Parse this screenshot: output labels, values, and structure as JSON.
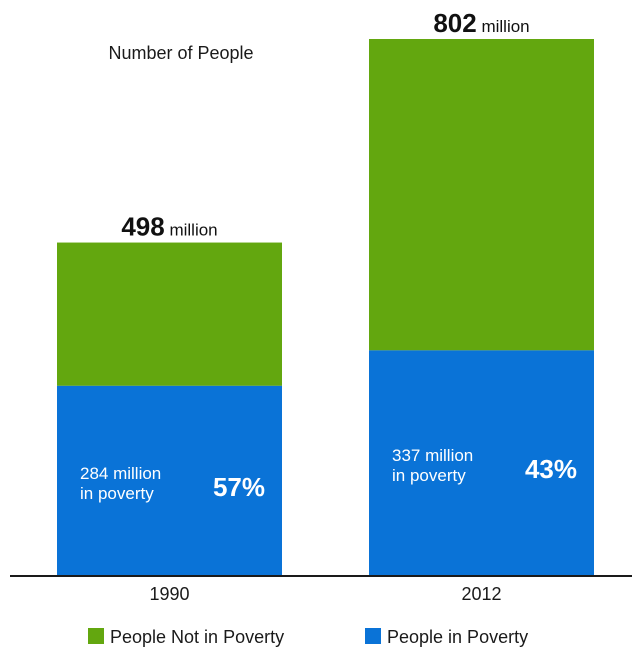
{
  "colors": {
    "not_in_poverty": "#63a70f",
    "in_poverty": "#0a73d7",
    "axis": "#1a1a1a",
    "text_dark": "#111111",
    "text_light": "#ffffff"
  },
  "chart_data": {
    "type": "bar",
    "stacked": true,
    "subtitle": "Number of People",
    "categories": [
      "1990",
      "2012"
    ],
    "unit": "million",
    "ylim": [
      0,
      802
    ],
    "grid": false,
    "legend_position": "bottom",
    "series": [
      {
        "name": "People in Poverty",
        "values": [
          284,
          337
        ]
      },
      {
        "name": "People Not in Poverty",
        "values": [
          214,
          465
        ]
      }
    ],
    "totals": [
      "498",
      "802"
    ],
    "poverty_values": [
      "284 million",
      "337 million"
    ],
    "poverty_suffix": "in poverty",
    "poverty_percent": [
      "57%",
      "43%"
    ],
    "totals_numeric": [
      498,
      802
    ],
    "poverty_numeric": [
      284,
      337
    ]
  },
  "legend": {
    "items": [
      {
        "label": "People Not in Poverty"
      },
      {
        "label": "People in Poverty"
      }
    ]
  }
}
